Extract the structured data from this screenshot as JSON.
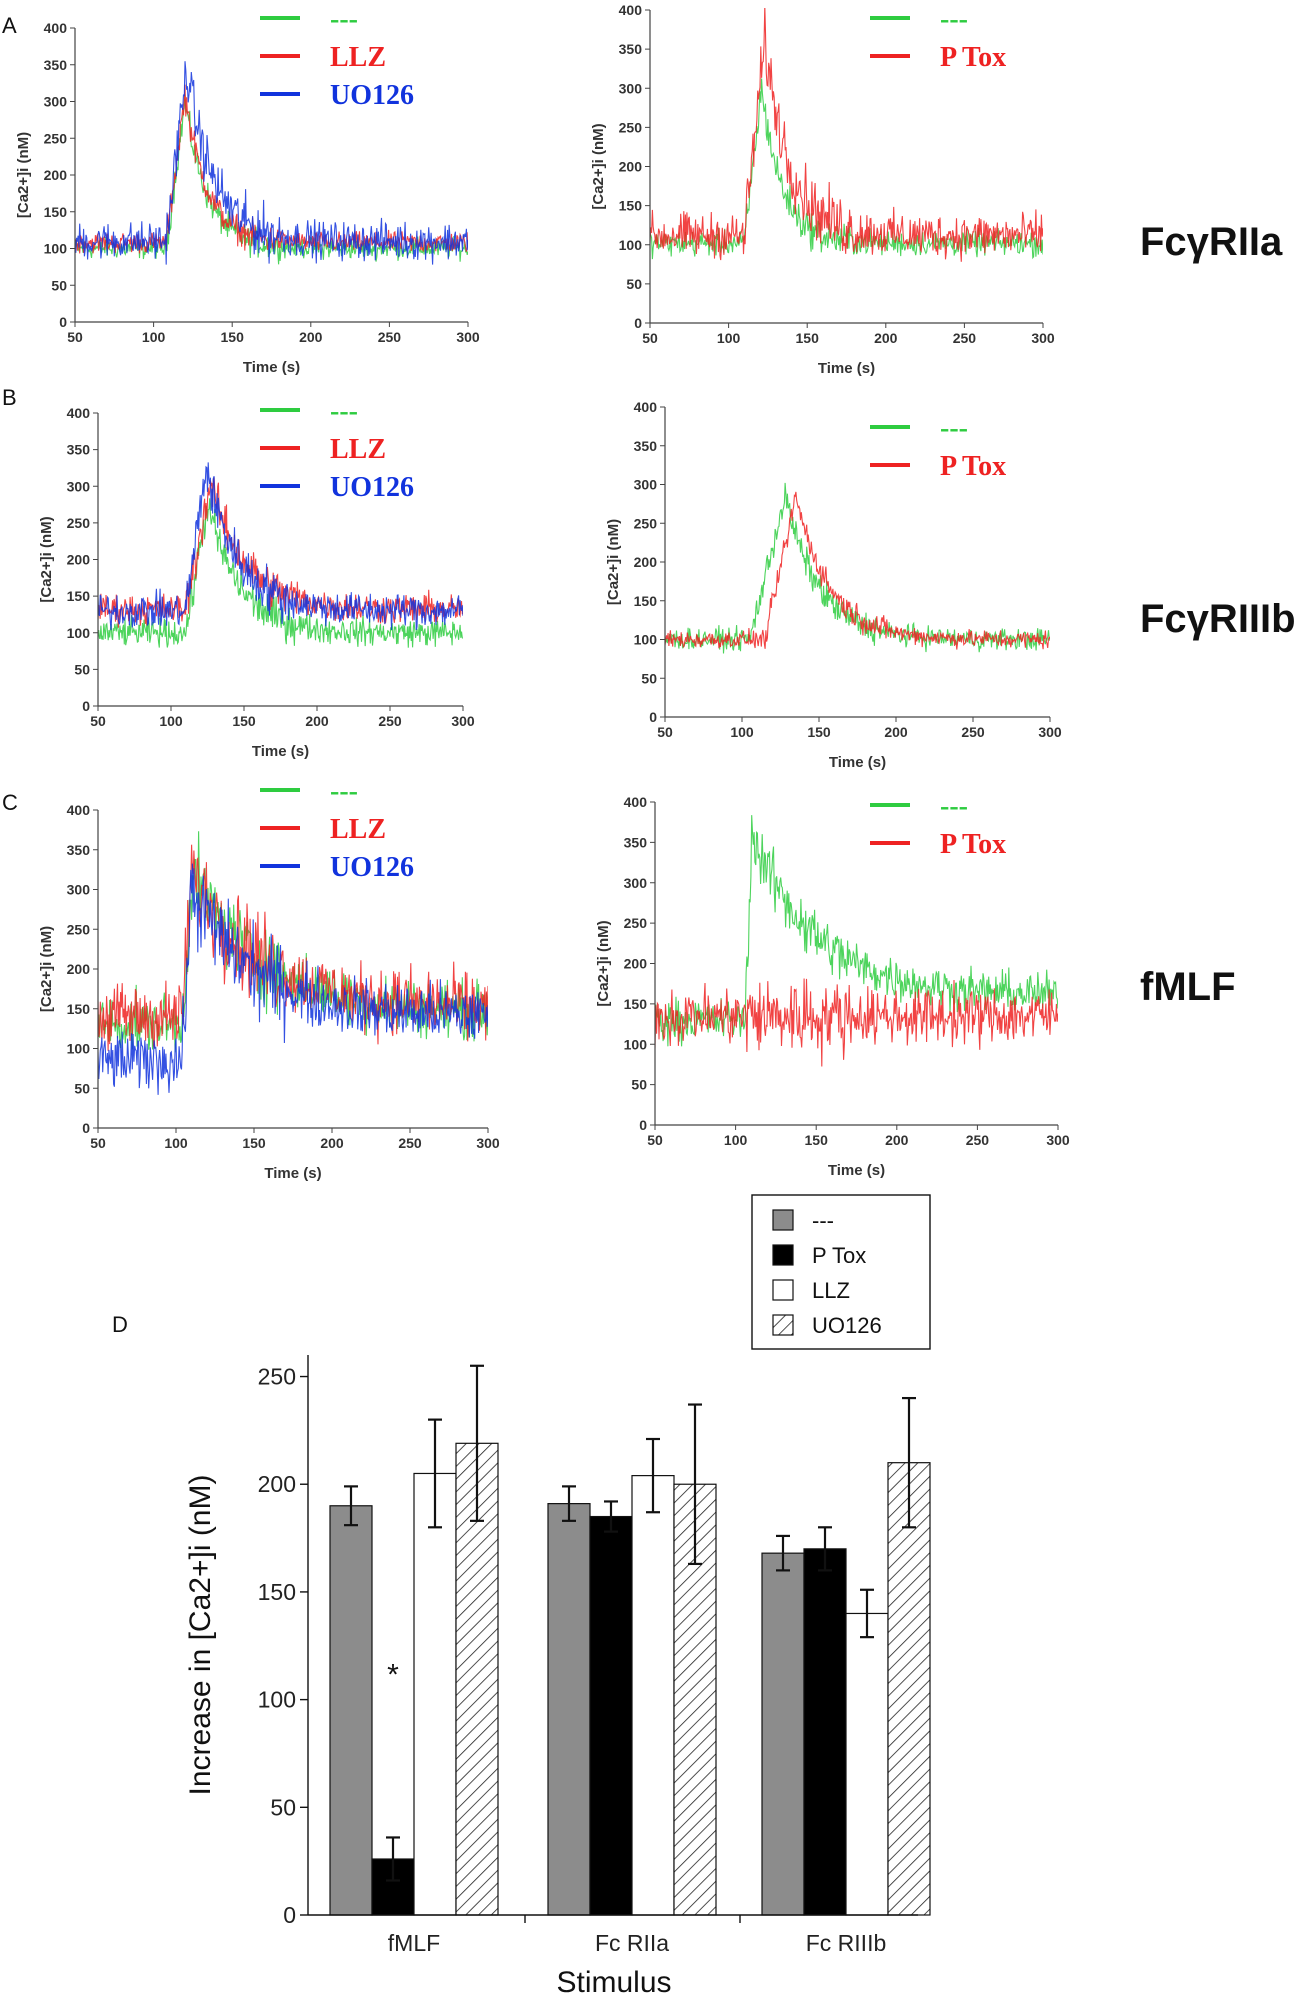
{
  "panels": {
    "a": "A",
    "b": "B",
    "c": "C",
    "d": "D"
  },
  "row_labels": {
    "a": "FcγRIIa",
    "b": "FcγRIIIb",
    "c": "fMLF"
  },
  "colors": {
    "green": "#2ecc40",
    "red": "#ee2222",
    "blue": "#1133dd",
    "gray": "#8c8c8c"
  },
  "chart_data": [
    {
      "type": "line",
      "panel": "A-left",
      "xlabel": "Time (s)",
      "ylabel": "[Ca2+]i (nM)",
      "xlim": [
        50,
        300
      ],
      "ylim": [
        0,
        400
      ],
      "xticks": [
        50,
        100,
        150,
        200,
        250,
        300
      ],
      "yticks": [
        0,
        50,
        100,
        150,
        200,
        250,
        300,
        350,
        400
      ],
      "series": [
        {
          "name": "---",
          "color": "#2ecc40",
          "baseline": 100,
          "peak": 300,
          "rise_start": 108,
          "peak_time": 120,
          "decay": 14,
          "noise": 12
        },
        {
          "name": "LLZ",
          "color": "#ee2222",
          "baseline": 108,
          "peak": 310,
          "rise_start": 108,
          "peak_time": 120,
          "decay": 14,
          "noise": 12
        },
        {
          "name": "UO126",
          "color": "#1133dd",
          "baseline": 110,
          "peak": 345,
          "rise_start": 108,
          "peak_time": 121,
          "decay": 17,
          "noise": 22
        }
      ]
    },
    {
      "type": "line",
      "panel": "A-right",
      "xlabel": "Time (s)",
      "ylabel": "[Ca2+]i (nM)",
      "xlim": [
        50,
        300
      ],
      "ylim": [
        0,
        400
      ],
      "xticks": [
        50,
        100,
        150,
        200,
        250,
        300
      ],
      "yticks": [
        0,
        50,
        100,
        150,
        200,
        250,
        300,
        350,
        400
      ],
      "series": [
        {
          "name": "---",
          "color": "#2ecc40",
          "baseline": 102,
          "peak": 300,
          "rise_start": 110,
          "peak_time": 121,
          "decay": 13,
          "noise": 14
        },
        {
          "name": "P Tox",
          "color": "#ee2222",
          "baseline": 112,
          "peak": 360,
          "rise_start": 110,
          "peak_time": 123,
          "decay": 16,
          "noise": 24
        }
      ]
    },
    {
      "type": "line",
      "panel": "B-left",
      "xlabel": "Time (s)",
      "ylabel": "[Ca2+]i (nM)",
      "xlim": [
        50,
        300
      ],
      "ylim": [
        0,
        400
      ],
      "xticks": [
        50,
        100,
        150,
        200,
        250,
        300
      ],
      "yticks": [
        0,
        50,
        100,
        150,
        200,
        250,
        300,
        350,
        400
      ],
      "series": [
        {
          "name": "---",
          "color": "#2ecc40",
          "baseline": 100,
          "peak": 275,
          "rise_start": 110,
          "peak_time": 125,
          "decay": 22,
          "noise": 16
        },
        {
          "name": "LLZ",
          "color": "#ee2222",
          "baseline": 132,
          "peak": 305,
          "rise_start": 110,
          "peak_time": 127,
          "decay": 24,
          "noise": 18
        },
        {
          "name": "UO126",
          "color": "#1133dd",
          "baseline": 130,
          "peak": 325,
          "rise_start": 110,
          "peak_time": 124,
          "decay": 22,
          "noise": 20
        }
      ]
    },
    {
      "type": "line",
      "panel": "B-right",
      "xlabel": "Time (s)",
      "ylabel": "[Ca2+]i (nM)",
      "xlim": [
        50,
        300
      ],
      "ylim": [
        0,
        400
      ],
      "xticks": [
        50,
        100,
        150,
        200,
        250,
        300
      ],
      "yticks": [
        0,
        50,
        100,
        150,
        200,
        250,
        300,
        350,
        400
      ],
      "series": [
        {
          "name": "---",
          "color": "#2ecc40",
          "baseline": 100,
          "peak": 285,
          "rise_start": 105,
          "peak_time": 128,
          "decay": 22,
          "noise": 12
        },
        {
          "name": "P Tox",
          "color": "#ee2222",
          "baseline": 100,
          "peak": 285,
          "rise_start": 115,
          "peak_time": 135,
          "decay": 22,
          "noise": 10
        }
      ]
    },
    {
      "type": "line",
      "panel": "C-left",
      "xlabel": "Time (s)",
      "ylabel": "[Ca2+]i (nM)",
      "xlim": [
        50,
        300
      ],
      "ylim": [
        0,
        400
      ],
      "xticks": [
        50,
        100,
        150,
        200,
        250,
        300
      ],
      "yticks": [
        0,
        50,
        100,
        150,
        200,
        250,
        300,
        350,
        400
      ],
      "series": [
        {
          "name": "---",
          "color": "#2ecc40",
          "baseline": 130,
          "peak": 320,
          "rise_start": 104,
          "peak_time": 110,
          "decay": 45,
          "noise": 30,
          "tail": 145
        },
        {
          "name": "LLZ",
          "color": "#ee2222",
          "baseline": 140,
          "peak": 320,
          "rise_start": 104,
          "peak_time": 110,
          "decay": 45,
          "noise": 36,
          "tail": 150
        },
        {
          "name": "UO126",
          "color": "#1133dd",
          "baseline": 85,
          "peak": 300,
          "rise_start": 104,
          "peak_time": 110,
          "decay": 40,
          "noise": 32,
          "tail": 140
        }
      ]
    },
    {
      "type": "line",
      "panel": "C-right",
      "xlabel": "Time (s)",
      "ylabel": "[Ca2+]i (nM)",
      "xlim": [
        50,
        300
      ],
      "ylim": [
        0,
        400
      ],
      "xticks": [
        50,
        100,
        150,
        200,
        250,
        300
      ],
      "yticks": [
        0,
        50,
        100,
        150,
        200,
        250,
        300,
        350,
        400
      ],
      "series": [
        {
          "name": "---",
          "color": "#2ecc40",
          "baseline": 130,
          "peak": 360,
          "rise_start": 106,
          "peak_time": 110,
          "decay": 40,
          "noise": 22,
          "tail": 160
        },
        {
          "name": "P Tox",
          "color": "#ee2222",
          "baseline": 135,
          "peak": 135,
          "rise_start": 106,
          "peak_time": 110,
          "decay": 40,
          "noise": 30,
          "tail": 135
        }
      ]
    },
    {
      "type": "bar",
      "panel": "D",
      "xlabel": "Stimulus",
      "ylabel": "Increase in [Ca2+]i (nM)",
      "ylim": [
        0,
        260
      ],
      "yticks": [
        0,
        50,
        100,
        150,
        200,
        250
      ],
      "categories": [
        "fMLF",
        "Fc RIIa",
        "Fc RIIIb"
      ],
      "series": [
        {
          "name": "---",
          "fill": "gray",
          "values": [
            190,
            191,
            168
          ],
          "errors": [
            9,
            8,
            8
          ]
        },
        {
          "name": "P Tox",
          "fill": "black",
          "values": [
            26,
            185,
            170
          ],
          "errors": [
            10,
            7,
            10
          ]
        },
        {
          "name": "LLZ",
          "fill": "white",
          "values": [
            205,
            204,
            140
          ],
          "errors": [
            25,
            17,
            11
          ]
        },
        {
          "name": "UO126",
          "fill": "hatch",
          "values": [
            219,
            200,
            210
          ],
          "errors": [
            36,
            37,
            30
          ]
        }
      ],
      "annotations": [
        {
          "text": "*",
          "category": "fMLF",
          "value": 107
        }
      ]
    }
  ]
}
